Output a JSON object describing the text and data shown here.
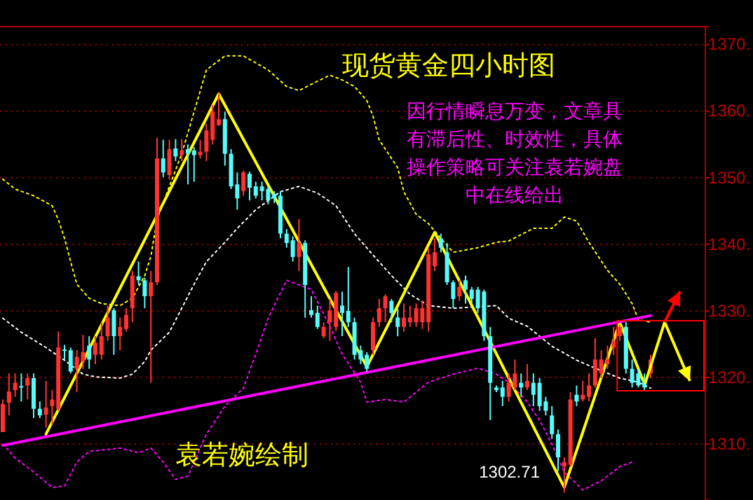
{
  "chart_data": {
    "type": "candlestick",
    "title": "现货黄金四小时图",
    "subtitle": "因行情瞬息万变，文章具有滞后性、时效性，具体操作策略可关注袁若婉盘中在线给出",
    "annotations": [
      "袁若婉绘制",
      "1302.71"
    ],
    "ylim": [
      1301.6,
      1372.7
    ],
    "yticks": [
      {
        "value": 1310,
        "label": "1310."
      },
      {
        "value": 1320,
        "label": "1320."
      },
      {
        "value": 1330,
        "label": "1330."
      },
      {
        "value": 1340,
        "label": "1340."
      },
      {
        "value": 1350,
        "label": "1350."
      },
      {
        "value": 1360,
        "label": "1360."
      },
      {
        "value": 1370,
        "label": "1370."
      }
    ],
    "grid": "y",
    "tick_labels": "y",
    "categories": [
      null,
      null,
      null,
      null,
      null,
      null,
      null,
      null,
      null,
      null,
      null,
      null,
      null,
      null,
      null,
      null,
      null,
      null,
      null,
      null,
      null,
      null,
      null,
      null,
      null,
      null,
      null,
      null,
      null,
      null,
      null,
      null,
      null,
      null,
      null,
      null,
      null,
      null,
      null,
      null,
      null,
      null,
      null,
      null,
      null,
      null,
      null,
      null,
      null,
      null,
      null,
      null,
      null,
      null,
      null,
      null,
      null,
      null,
      null,
      null,
      null,
      null,
      null,
      null,
      null,
      null,
      null,
      null,
      null,
      null,
      null,
      null,
      null,
      null,
      null,
      null,
      null,
      null,
      null,
      null,
      null,
      null,
      null,
      null,
      null,
      null,
      null,
      null,
      null,
      null,
      null,
      null,
      null,
      null,
      null,
      null,
      null,
      null,
      null,
      null,
      null,
      null,
      null,
      null,
      null,
      null
    ],
    "ohlc": [
      [
        1311.8,
        1316.7,
        1311.8,
        1316
      ],
      [
        1316.2,
        1320.6,
        1314.3,
        1317.9
      ],
      [
        1318.1,
        1320.6,
        1317.1,
        1319.2
      ],
      [
        1318.7,
        1320.6,
        1316.4,
        1318.5
      ],
      [
        1318.8,
        1320.6,
        1316.7,
        1319.9
      ],
      [
        1319.9,
        1320.6,
        1313.9,
        1315.3
      ],
      [
        1315.3,
        1316.4,
        1313.9,
        1314.3
      ],
      [
        1314.4,
        1319.5,
        1312.5,
        1315.5
      ],
      [
        1315.7,
        1318.1,
        1312.9,
        1316.7
      ],
      [
        1315.3,
        1326.9,
        1315,
        1324.5
      ],
      [
        1324.2,
        1324.9,
        1322.7,
        1324
      ],
      [
        1324.1,
        1324.5,
        1320.6,
        1320.9
      ],
      [
        1321.3,
        1324.1,
        1317.8,
        1323.1
      ],
      [
        1322.4,
        1326.4,
        1321.3,
        1323.8
      ],
      [
        1324.8,
        1326.2,
        1321.3,
        1322.7
      ],
      [
        1323.4,
        1326.2,
        1322,
        1325.2
      ],
      [
        1323.4,
        1328.3,
        1322.7,
        1326.2
      ],
      [
        1326.2,
        1330.8,
        1325.5,
        1329
      ],
      [
        1330.1,
        1330.4,
        1323.4,
        1326.2
      ],
      [
        1326.2,
        1329,
        1324.1,
        1327.6
      ],
      [
        1327.3,
        1330.4,
        1326.9,
        1329.4
      ],
      [
        1330.4,
        1336,
        1328.3,
        1335.3
      ],
      [
        1335.2,
        1337.4,
        1333.9,
        1334.6
      ],
      [
        1334.6,
        1335,
        1330.4,
        1332.2
      ],
      [
        1332.2,
        1336,
        1319.2,
        1334.3
      ],
      [
        1334.3,
        1356,
        1333.9,
        1352.9
      ],
      [
        1352.9,
        1355.7,
        1350.1,
        1350.8
      ],
      [
        1350.4,
        1355.7,
        1349.7,
        1354.3
      ],
      [
        1354.4,
        1355.8,
        1352.5,
        1353.2
      ],
      [
        1353.4,
        1355.8,
        1352.5,
        1354.1
      ],
      [
        1354.3,
        1355,
        1349,
        1353.6
      ],
      [
        1354.1,
        1354.6,
        1349.4,
        1353.4
      ],
      [
        1353.4,
        1355.7,
        1352.9,
        1353.9
      ],
      [
        1353.9,
        1358.1,
        1352.5,
        1357.1
      ],
      [
        1355.7,
        1360.9,
        1355,
        1359.9
      ],
      [
        1357.9,
        1362.7,
        1357.8,
        1358.8
      ],
      [
        1358.8,
        1359.9,
        1351.8,
        1353.6
      ],
      [
        1353.6,
        1354.3,
        1348.3,
        1348.7
      ],
      [
        1349,
        1350.8,
        1345.2,
        1346.9
      ],
      [
        1348,
        1351.1,
        1347.3,
        1350.8
      ],
      [
        1350.6,
        1350.9,
        1346.6,
        1348.5
      ],
      [
        1348.7,
        1349.4,
        1346.9,
        1347.3
      ],
      [
        1348.7,
        1349.4,
        1346.6,
        1348
      ],
      [
        1348.3,
        1348.7,
        1346,
        1346.6
      ],
      [
        1347.6,
        1348,
        1346.2,
        1346.9
      ],
      [
        1347.3,
        1348,
        1340.9,
        1341.6
      ],
      [
        1341.6,
        1342.3,
        1339.5,
        1340.2
      ],
      [
        1340.6,
        1341.2,
        1337.4,
        1338.1
      ],
      [
        1338.1,
        1343.8,
        1336,
        1340.2
      ],
      [
        1340.2,
        1340.6,
        1329,
        1333.9
      ],
      [
        1330.1,
        1332.2,
        1329,
        1329.4
      ],
      [
        1329.7,
        1330.8,
        1327.3,
        1327.6
      ],
      [
        1326.2,
        1328.3,
        1325.9,
        1327.6
      ],
      [
        1328.3,
        1331.8,
        1325.5,
        1330.1
      ],
      [
        1327.6,
        1333,
        1327,
        1332.7
      ],
      [
        1330.8,
        1332.9,
        1326.2,
        1329.7
      ],
      [
        1330,
        1336.6,
        1327.6,
        1328.3
      ],
      [
        1328.3,
        1329,
        1322.7,
        1323.4
      ],
      [
        1324.1,
        1324.8,
        1322,
        1322.7
      ],
      [
        1323.4,
        1323.8,
        1320.9,
        1321.3
      ],
      [
        1324.1,
        1329,
        1323.4,
        1328.3
      ],
      [
        1328.3,
        1331.8,
        1327.6,
        1330.4
      ],
      [
        1330.4,
        1332.5,
        1328.3,
        1332.2
      ],
      [
        1331.5,
        1331.8,
        1328.3,
        1329.7
      ],
      [
        1329,
        1330.4,
        1326.2,
        1327.6
      ],
      [
        1327.6,
        1331.1,
        1326.9,
        1329
      ],
      [
        1328.3,
        1330.8,
        1327.6,
        1329
      ],
      [
        1328.3,
        1331.1,
        1327.6,
        1330.4
      ],
      [
        1328.3,
        1331.5,
        1327.3,
        1330.4
      ],
      [
        1328.3,
        1339.5,
        1326.9,
        1338.5
      ],
      [
        1336.7,
        1340.9,
        1336,
        1338.8
      ],
      [
        1340.9,
        1341.6,
        1338.8,
        1339.5
      ],
      [
        1338.8,
        1340.2,
        1333.9,
        1334.3
      ],
      [
        1334.3,
        1334.6,
        1330.4,
        1331.8
      ],
      [
        1332.2,
        1334.6,
        1331.5,
        1333.6
      ],
      [
        1334.6,
        1335.3,
        1331.1,
        1333.2
      ],
      [
        1333.2,
        1333.6,
        1331.1,
        1331.8
      ],
      [
        1333.2,
        1333.6,
        1329.7,
        1330.4
      ],
      [
        1332.9,
        1333.2,
        1325.5,
        1326.2
      ],
      [
        1326.2,
        1327.6,
        1313.6,
        1319.2
      ],
      [
        1318.5,
        1318.8,
        1317.8,
        1318.1
      ],
      [
        1318.5,
        1319.5,
        1315.7,
        1317.1
      ],
      [
        1317.1,
        1320.6,
        1316.4,
        1319.2
      ],
      [
        1318.5,
        1322.7,
        1318.1,
        1320.6
      ],
      [
        1319.2,
        1320.6,
        1317.1,
        1318.5
      ],
      [
        1318.5,
        1322,
        1318.1,
        1319.5
      ],
      [
        1319.2,
        1320.6,
        1315.7,
        1317.4
      ],
      [
        1319.2,
        1319.9,
        1315,
        1315.7
      ],
      [
        1316.4,
        1317.1,
        1314.3,
        1315
      ],
      [
        1314.3,
        1315.7,
        1310.8,
        1311.5
      ],
      [
        1311.5,
        1312.2,
        1305.9,
        1308
      ],
      [
        1306.6,
        1308,
        1302.71,
        1307.3
      ],
      [
        1306.9,
        1317.8,
        1306.6,
        1316.7
      ],
      [
        1317.4,
        1318.8,
        1315.7,
        1316.4
      ],
      [
        1316.7,
        1319.5,
        1316.4,
        1317.4
      ],
      [
        1317.1,
        1320.6,
        1316.4,
        1318.8
      ],
      [
        1318.8,
        1325.9,
        1318.5,
        1322.7
      ],
      [
        1320.6,
        1324.1,
        1319.9,
        1322.7
      ],
      [
        1322,
        1324.8,
        1321.3,
        1322.7
      ],
      [
        1324.5,
        1327.6,
        1323.4,
        1325.5
      ],
      [
        1326.2,
        1327.9,
        1325.5,
        1327.6
      ],
      [
        1327.6,
        1328.3,
        1320.6,
        1321.3
      ],
      [
        1321.3,
        1322.7,
        1318.5,
        1319.2
      ],
      [
        1320.6,
        1321.3,
        1318.5,
        1318.8
      ],
      [
        1319.5,
        1320.6,
        1318.1,
        1318.5
      ],
      [
        1320.6,
        1323.4,
        1319.9,
        1322.7
      ]
    ],
    "colors": [
      "#ff3232",
      "#ff3232",
      "#ff3232",
      "#54fcfc",
      "#ff3232",
      "#54fcfc",
      "#54fcfc",
      "#ff3232",
      "#ff3232",
      "#ff3232",
      "#54fcfc",
      "#54fcfc",
      "#ff3232",
      "#ff3232",
      "#54fcfc",
      "#ff3232",
      "#ff3232",
      "#ff3232",
      "#54fcfc",
      "#ff3232",
      "#ff3232",
      "#ff3232",
      "#54fcfc",
      "#54fcfc",
      "#ff3232",
      "#ff3232",
      "#54fcfc",
      "#ff3232",
      "#54fcfc",
      "#ff3232",
      "#54fcfc",
      "#54fcfc",
      "#ff3232",
      "#ff3232",
      "#ff3232",
      "#ff3232",
      "#54fcfc",
      "#54fcfc",
      "#54fcfc",
      "#ff3232",
      "#54fcfc",
      "#54fcfc",
      "#54fcfc",
      "#54fcfc",
      "#54fcfc",
      "#54fcfc",
      "#54fcfc",
      "#54fcfc",
      "#ff3232",
      "#54fcfc",
      "#54fcfc",
      "#54fcfc",
      "#ff3232",
      "#ff3232",
      "#ff3232",
      "#54fcfc",
      "#54fcfc",
      "#54fcfc",
      "#54fcfc",
      "#54fcfc",
      "#ff3232",
      "#ff3232",
      "#ff3232",
      "#54fcfc",
      "#54fcfc",
      "#ff3232",
      "#ff3232",
      "#ff3232",
      "#ff3232",
      "#ff3232",
      "#ff3232",
      "#54fcfc",
      "#54fcfc",
      "#54fcfc",
      "#ff3232",
      "#54fcfc",
      "#54fcfc",
      "#54fcfc",
      "#54fcfc",
      "#54fcfc",
      "#54fcfc",
      "#54fcfc",
      "#ff3232",
      "#ff3232",
      "#54fcfc",
      "#ff3232",
      "#54fcfc",
      "#54fcfc",
      "#54fcfc",
      "#54fcfc",
      "#54fcfc",
      "#ff3232",
      "#ff3232",
      "#54fcfc",
      "#ff3232",
      "#ff3232",
      "#ff3232",
      "#ff3232",
      "#ff3232",
      "#ff3232",
      "#ff3232",
      "#54fcfc",
      "#54fcfc",
      "#54fcfc",
      "#54fcfc",
      "#ff3232"
    ],
    "series": [
      {
        "type": "line",
        "color": "#ffff00",
        "line_style": "dotted",
        "values": [
          1349.8,
          null,
          1348.3,
          null,
          null,
          1347.3,
          null,
          null,
          1345.8,
          1343.7,
          1340.9,
          1337.4,
          1334,
          null,
          1331.9,
          null,
          1331.1,
          null,
          null,
          1330.8,
          null,
          1331.9,
          null,
          1335.3,
          1338.2,
          1343.7,
          null,
          1348.7,
          null,
          1353.6,
          null,
          1359.9,
          null,
          1366.2,
          null,
          null,
          1368.3,
          null,
          null,
          1368.3,
          null,
          null,
          null,
          1366.2,
          null,
          null,
          1363.7,
          null,
          1363.1,
          null,
          null,
          1364.5,
          null,
          1365.4,
          null,
          1364.7,
          null,
          1363.7,
          null,
          1361.6,
          1359.3,
          1355.7,
          null,
          null,
          1351.5,
          1347.9,
          null,
          1344.5,
          null,
          1343.1,
          null,
          1340.9,
          null,
          1338.8,
          null,
          null,
          null,
          1339.5,
          null,
          null,
          1340.3,
          null,
          1340.5,
          null,
          null,
          null,
          1342.4,
          null,
          null,
          1342.4,
          null,
          1344.1,
          null,
          1343.5,
          null,
          1340.3,
          null,
          null,
          1336.1,
          null,
          1334,
          null,
          1331.1,
          1328.7,
          null,
          1328.3
        ]
      },
      {
        "type": "line",
        "color": "#ffffff",
        "line_style": "dotted",
        "values": [
          1328.9,
          null,
          null,
          1326.8,
          null,
          null,
          null,
          1324.5,
          null,
          null,
          1322.6,
          null,
          null,
          1320.5,
          null,
          1320.1,
          null,
          null,
          null,
          1319.9,
          null,
          1320.5,
          null,
          1322.4,
          1324.1,
          null,
          null,
          1326.8,
          null,
          1330.4,
          null,
          1334,
          null,
          1337.4,
          null,
          null,
          1340.3,
          null,
          1342.4,
          null,
          null,
          1345.2,
          null,
          null,
          null,
          1347.9,
          null,
          null,
          1348.7,
          null,
          null,
          1347.7,
          null,
          null,
          1345.8,
          null,
          null,
          1341.6,
          null,
          null,
          1338.4,
          null,
          null,
          1335.3,
          null,
          null,
          1332.5,
          null,
          null,
          1330.8,
          null,
          null,
          null,
          1330.4,
          null,
          null,
          null,
          null,
          null,
          null,
          1330.8,
          null,
          1328.9,
          null,
          null,
          1327.7,
          null,
          null,
          null,
          1324.7,
          null,
          null,
          null,
          1322.6,
          null,
          null,
          1321.4,
          null,
          null,
          null,
          1319.9,
          null,
          null,
          1319.3,
          null,
          1318.4
        ]
      },
      {
        "type": "line",
        "color": "#ff00ff",
        "line_style": "dotted",
        "values": [
          1310,
          null,
          1307.9,
          null,
          null,
          1305.8,
          null,
          null,
          1303.5,
          null,
          1303.7,
          null,
          1307.3,
          null,
          1308.9,
          null,
          null,
          null,
          null,
          1309.4,
          null,
          null,
          1308.7,
          null,
          1309.4,
          null,
          1307.3,
          null,
          1304.7,
          null,
          1305.2,
          null,
          null,
          1311.5,
          null,
          null,
          1315.7,
          null,
          null,
          1318.4,
          null,
          1323.5,
          null,
          1328.9,
          null,
          null,
          1334.6,
          null,
          null,
          null,
          1333.2,
          null,
          null,
          1327.7,
          null,
          1323.5,
          null,
          null,
          1319.3,
          1316.3,
          null,
          null,
          1316.7,
          null,
          null,
          1316.3,
          null,
          null,
          null,
          1319.3,
          null,
          null,
          null,
          1320.5,
          null,
          null,
          null,
          1321.4,
          null,
          null,
          1320.5,
          null,
          1319.3,
          null,
          null,
          1316.3,
          null,
          1313.6,
          null,
          1310,
          null,
          1305.8,
          null,
          null,
          1303.1,
          null,
          null,
          1304.5,
          null,
          null,
          1306.6,
          null,
          1307.3,
          null,
          null,
          null
        ]
      },
      {
        "type": "line",
        "color": "#ffff00",
        "line_style": "solid",
        "values": [
          null,
          null,
          null,
          null,
          null,
          null,
          null,
          1311.5,
          null,
          null,
          null,
          null,
          null,
          null,
          null,
          null,
          null,
          null,
          null,
          null,
          null,
          null,
          null,
          null,
          null,
          null,
          null,
          null,
          null,
          null,
          null,
          null,
          null,
          null,
          null,
          1362.6,
          null,
          null,
          null,
          null,
          null,
          null,
          null,
          null,
          null,
          null,
          null,
          null,
          null,
          null,
          null,
          null,
          null,
          null,
          null,
          null,
          null,
          null,
          null,
          1321.6,
          null,
          null,
          null,
          null,
          null,
          null,
          null,
          null,
          null,
          null,
          1341.8,
          null,
          null,
          null,
          null,
          null,
          null,
          null,
          null,
          null,
          null,
          null,
          null,
          null,
          null,
          null,
          null,
          null,
          null,
          null,
          null,
          1303.5,
          null,
          null,
          null,
          null,
          null,
          null,
          null,
          null,
          1328.3,
          null,
          null,
          null,
          1319,
          null
        ]
      },
      {
        "type": "line",
        "color": "#ff00ff",
        "line_style": "solid",
        "values": [
          1309.8,
          null,
          null,
          null,
          null,
          null,
          null,
          null,
          null,
          null,
          null,
          null,
          null,
          null,
          null,
          null,
          null,
          null,
          null,
          null,
          null,
          null,
          null,
          null,
          null,
          null,
          null,
          null,
          null,
          null,
          null,
          null,
          null,
          null,
          null,
          null,
          null,
          null,
          null,
          null,
          null,
          null,
          null,
          null,
          null,
          null,
          null,
          null,
          null,
          null,
          null,
          null,
          null,
          null,
          null,
          null,
          null,
          null,
          null,
          null,
          null,
          null,
          null,
          null,
          null,
          null,
          null,
          null,
          null,
          null,
          null,
          null,
          null,
          null,
          null,
          null,
          null,
          null,
          null,
          null,
          null,
          null,
          null,
          null,
          null,
          null,
          null,
          null,
          null,
          null,
          null,
          null,
          null,
          null,
          null,
          null,
          null,
          null,
          null,
          null,
          null,
          null,
          null,
          null,
          null,
          1329.3
        ]
      }
    ]
  }
}
